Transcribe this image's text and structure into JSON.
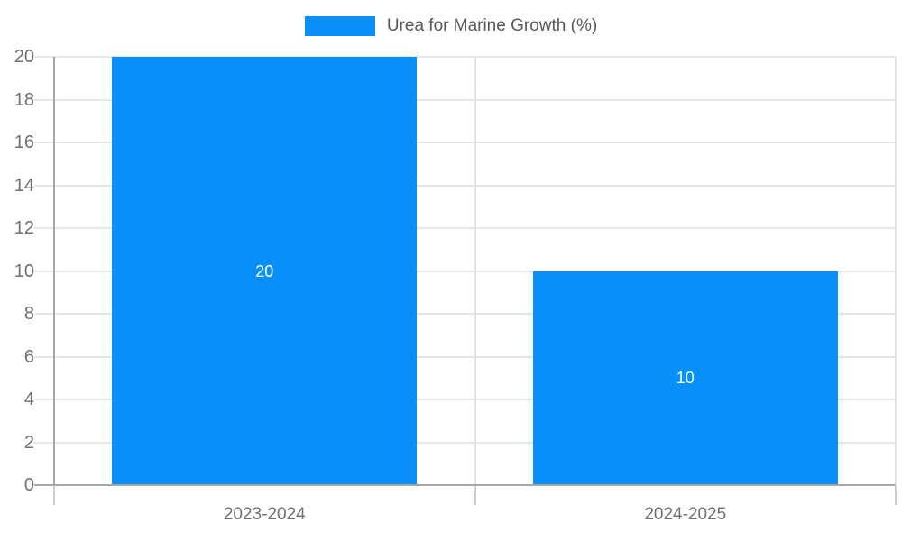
{
  "colors": {
    "bar": "#0990f8",
    "axis_line": "#a6a6a6",
    "grid_line": "#e6e6e6",
    "tick_label": "#707070",
    "legend_text": "#55585c",
    "bar_label": "#ffffff",
    "background": "#ffffff"
  },
  "legend": {
    "label": "Urea for Marine Growth (%)",
    "swatch_color": "#0990f8"
  },
  "chart_data": {
    "type": "bar",
    "title": "",
    "xlabel": "",
    "ylabel": "",
    "categories": [
      "2023-2024",
      "2024-2025"
    ],
    "series": [
      {
        "name": "Urea for Marine Growth (%)",
        "values": [
          20,
          10
        ]
      }
    ],
    "bar_labels": [
      "20",
      "10"
    ],
    "ylim": [
      0,
      20
    ],
    "ytick_step": 2,
    "yticks": [
      0,
      2,
      4,
      6,
      8,
      10,
      12,
      14,
      16,
      18,
      20
    ],
    "grid": true,
    "legend_position": "top-center"
  }
}
